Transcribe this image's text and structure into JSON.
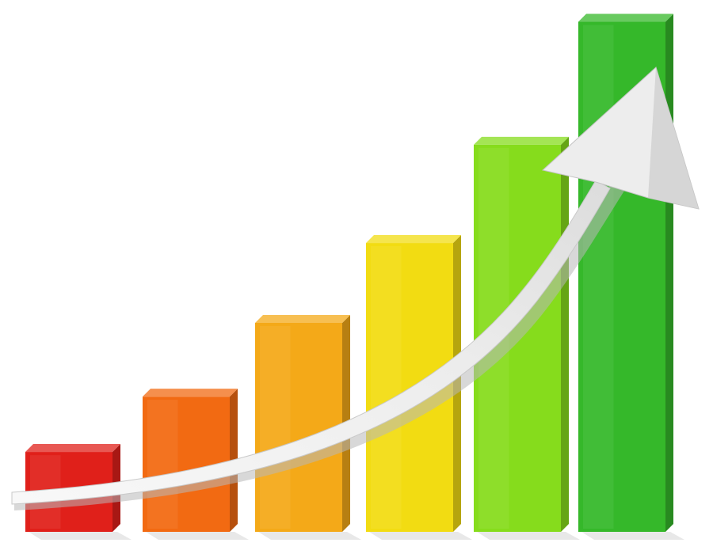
{
  "chart_data": {
    "type": "bar",
    "categories": [
      "",
      "",
      "",
      "",
      "",
      ""
    ],
    "values": [
      13,
      22,
      34,
      47,
      63,
      83
    ],
    "ylim": [
      0,
      85
    ],
    "grid": false,
    "legend": "none",
    "colors": [
      "#e0201a",
      "#f26a12",
      "#f4a918",
      "#f2dc12",
      "#86dc1c",
      "#35b82a"
    ],
    "trend_arrow": {
      "color": "#eeeeee",
      "direction": "up"
    }
  }
}
